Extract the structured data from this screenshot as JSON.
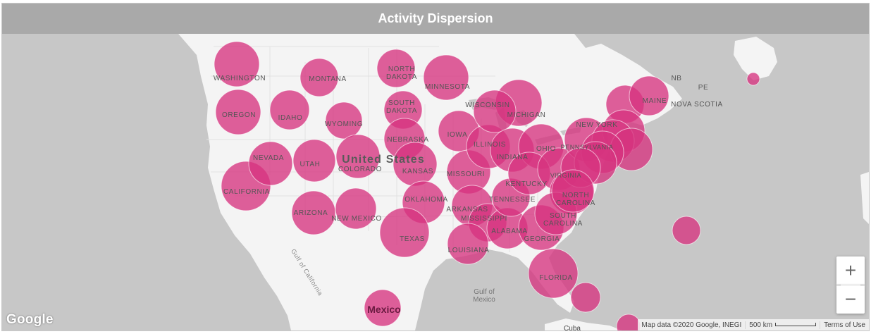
{
  "header": {
    "title": "Activity Dispersion"
  },
  "map": {
    "marker_color": "#d6337f",
    "labels": {
      "country_us": "United States",
      "country_mexico": "Mexico",
      "cuba": "Cuba",
      "gulf_of_mexico": "Gulf of\nMexico",
      "gulf_of_california": "Gulf of California",
      "nb": "NB",
      "pe": "PE",
      "nova_scotia": "NOVA SCOTIA",
      "states": {
        "washington": "WASHINGTON",
        "oregon": "OREGON",
        "california": "CALIFORNIA",
        "nevada": "NEVADA",
        "idaho": "IDAHO",
        "montana": "MONTANA",
        "wyoming": "WYOMING",
        "utah": "UTAH",
        "colorado": "COLORADO",
        "arizona": "ARIZONA",
        "new_mexico": "NEW MEXICO",
        "north_dakota": "NORTH\nDAKOTA",
        "south_dakota": "SOUTH\nDAKOTA",
        "nebraska": "NEBRASKA",
        "kansas": "KANSAS",
        "oklahoma": "OKLAHOMA",
        "texas": "TEXAS",
        "minnesota": "MINNESOTA",
        "iowa": "IOWA",
        "missouri": "MISSOURI",
        "arkansas": "ARKANSAS",
        "louisiana": "LOUISIANA",
        "wisconsin": "WISCONSIN",
        "illinois": "ILLINOIS",
        "michigan": "MICHIGAN",
        "indiana": "INDIANA",
        "ohio": "OHIO",
        "kentucky": "KENTUCKY",
        "tennessee": "TENNESSEE",
        "mississippi": "MISSISSIPPI",
        "alabama": "ALABAMA",
        "georgia": "GEORGIA",
        "florida": "FLORIDA",
        "south_carolina": "SOUTH\nCAROLINA",
        "north_carolina": "NORTH\nCAROLINA",
        "virginia": "VIRGINIA",
        "pennsylvania": "PENNSYLVANIA",
        "new_york": "NEW YORK",
        "maine": "MAINE"
      }
    }
  },
  "controls": {
    "zoom_in": "+",
    "zoom_out": "−"
  },
  "footer": {
    "google": "Google",
    "map_data": "Map data ©2020 Google, INEGI",
    "scale": "500 km",
    "terms": "Terms of Use"
  }
}
